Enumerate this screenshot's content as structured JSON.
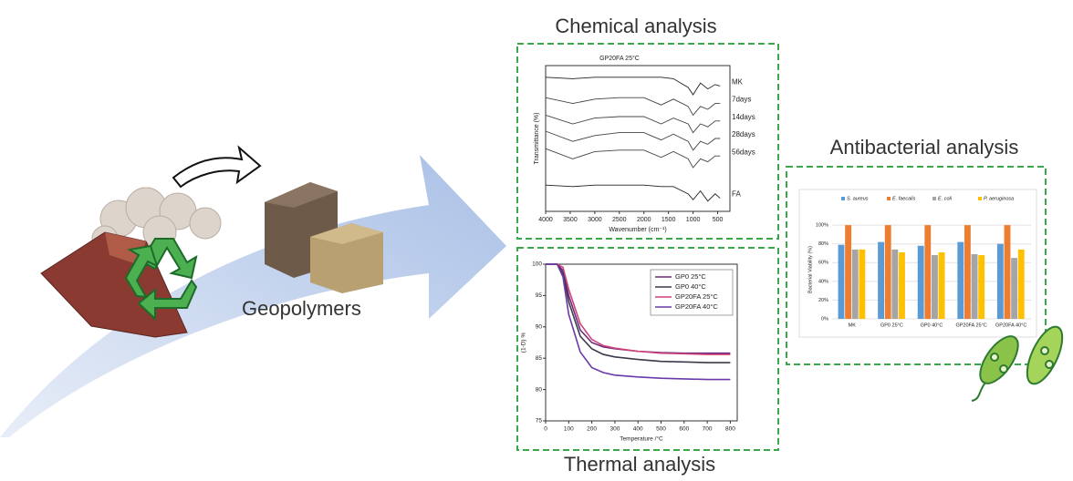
{
  "labels": {
    "product": "Geopolymers",
    "chemical": "Chemical analysis",
    "antibacterial": "Antibacterial analysis",
    "thermal": "Thermal analysis"
  },
  "chart_data": [
    {
      "type": "line",
      "title": "GP20FA 25°C",
      "x_label": "Wavenumber (cm⁻¹)",
      "y_label": "Transmittance (%)",
      "x": [
        4000,
        3450,
        3000,
        2500,
        2000,
        1650,
        1400,
        1100,
        1000,
        850,
        700,
        550,
        450
      ],
      "xlim": [
        4000,
        250
      ],
      "xticks": [
        4000,
        3500,
        3000,
        2500,
        2000,
        1500,
        1000,
        500
      ],
      "ylim": [
        0,
        100
      ],
      "series": [
        {
          "name": "MK",
          "color": "#222222",
          "values": [
            92,
            91,
            92,
            92,
            92,
            92,
            91,
            85,
            80,
            88,
            84,
            87,
            86
          ]
        },
        {
          "name": "7days",
          "color": "#444444",
          "values": [
            78,
            74,
            77,
            78,
            78,
            73,
            77,
            72,
            66,
            72,
            70,
            74,
            74
          ]
        },
        {
          "name": "14days",
          "color": "#444444",
          "values": [
            66,
            60,
            64,
            65,
            65,
            60,
            64,
            60,
            54,
            60,
            58,
            62,
            62
          ]
        },
        {
          "name": "28days",
          "color": "#444444",
          "values": [
            55,
            48,
            52,
            54,
            54,
            49,
            53,
            48,
            42,
            48,
            46,
            50,
            50
          ]
        },
        {
          "name": "56days",
          "color": "#444444",
          "values": [
            43,
            36,
            41,
            42,
            42,
            37,
            41,
            36,
            30,
            36,
            34,
            38,
            38
          ]
        },
        {
          "name": "FA",
          "color": "#222222",
          "values": [
            18,
            17,
            18,
            18,
            18,
            17,
            17,
            12,
            8,
            14,
            7,
            12,
            9
          ]
        }
      ]
    },
    {
      "type": "line",
      "x_label": "Temperature /°C",
      "y_label": "(1-D) %",
      "x": [
        0,
        50,
        75,
        100,
        150,
        200,
        250,
        300,
        400,
        500,
        600,
        700,
        800
      ],
      "xlim": [
        0,
        830
      ],
      "xticks": [
        0,
        100,
        200,
        300,
        400,
        500,
        600,
        700,
        800
      ],
      "ylim": [
        75,
        100
      ],
      "yticks": [
        75,
        80,
        85,
        90,
        95,
        100
      ],
      "legend": "upper right",
      "series": [
        {
          "name": "GP0 25°C",
          "color": "#6a2c7a",
          "values": [
            100,
            100,
            99,
            95,
            89.5,
            87.5,
            86.8,
            86.5,
            86.1,
            85.9,
            85.8,
            85.8,
            85.8
          ]
        },
        {
          "name": "GP0 40°C",
          "color": "#3a3a4a",
          "values": [
            100,
            100,
            98.5,
            94,
            88.5,
            86.5,
            85.6,
            85.2,
            84.8,
            84.5,
            84.4,
            84.3,
            84.3
          ]
        },
        {
          "name": "GP20FA 25°C",
          "color": "#d0407a",
          "values": [
            100,
            100,
            99.5,
            96,
            90.5,
            88,
            87,
            86.6,
            86.1,
            85.8,
            85.7,
            85.6,
            85.6
          ]
        },
        {
          "name": "GP20FA 40°C",
          "color": "#6a3aa8",
          "values": [
            100,
            100,
            98,
            92,
            86,
            83.5,
            82.7,
            82.3,
            82,
            81.8,
            81.7,
            81.6,
            81.6
          ]
        }
      ]
    },
    {
      "type": "bar",
      "y_label": "Bacterial Viability (%)",
      "categories": [
        "MK",
        "GP0 25°C",
        "GP0 40°C",
        "GP20FA 25°C",
        "GP20FA 40°C"
      ],
      "ylim": [
        0,
        105
      ],
      "grid": true,
      "legend": "top",
      "yticks": [
        {
          "value": 0,
          "label": "0%"
        },
        {
          "value": 20,
          "label": "20%"
        },
        {
          "value": 40,
          "label": "40%"
        },
        {
          "value": 60,
          "label": "60%"
        },
        {
          "value": 80,
          "label": "80%"
        },
        {
          "value": 100,
          "label": "100%"
        }
      ],
      "series": [
        {
          "name": "S. aureus",
          "color": "#5b9bd5",
          "values": [
            79,
            82,
            78,
            82,
            80
          ]
        },
        {
          "name": "E. faecalis",
          "color": "#ed7d31",
          "values": [
            100,
            100,
            100,
            100,
            100
          ]
        },
        {
          "name": "E. coli",
          "color": "#a5a5a5",
          "values": [
            74,
            74,
            68,
            69,
            65
          ]
        },
        {
          "name": "P. aeruginosa",
          "color": "#ffc000",
          "values": [
            74,
            71,
            71,
            68,
            74
          ]
        }
      ]
    }
  ]
}
